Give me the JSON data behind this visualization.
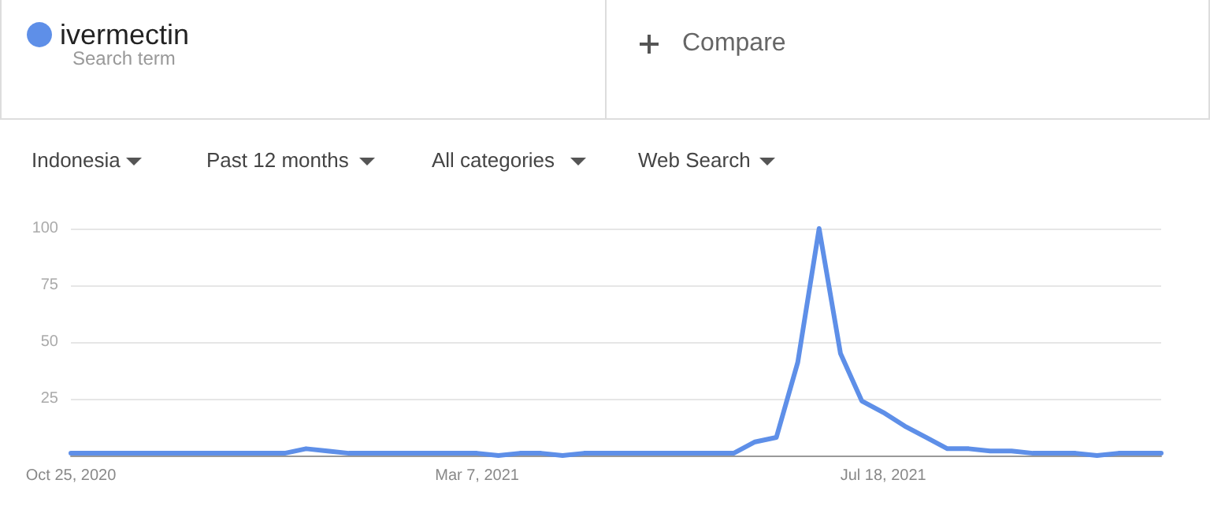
{
  "chart_data": {
    "type": "line",
    "categories": [
      "Oct 25, 2020",
      null,
      null,
      null,
      null,
      null,
      null,
      null,
      null,
      null,
      null,
      null,
      null,
      null,
      null,
      null,
      null,
      null,
      null,
      "Mar 7, 2021",
      null,
      null,
      null,
      null,
      null,
      null,
      null,
      null,
      null,
      null,
      null,
      null,
      null,
      null,
      null,
      null,
      null,
      null,
      "Jul 18, 2021",
      null,
      null,
      null,
      null,
      null,
      null,
      null,
      null,
      null,
      null,
      null,
      null,
      null
    ],
    "series": [
      {
        "name": "ivermectin",
        "color": "#5e8fe8",
        "values": [
          1,
          1,
          1,
          1,
          1,
          1,
          1,
          1,
          1,
          1,
          1,
          3,
          2,
          1,
          1,
          1,
          1,
          1,
          1,
          1,
          0,
          1,
          1,
          0,
          1,
          1,
          1,
          1,
          1,
          1,
          1,
          1,
          6,
          8,
          41,
          100,
          45,
          24,
          19,
          13,
          8,
          3,
          3,
          2,
          2,
          1,
          1,
          1,
          0,
          1,
          1,
          1
        ]
      }
    ],
    "ylim": [
      0,
      100
    ],
    "yticks": [
      {
        "value": 0,
        "label": null
      },
      25,
      50,
      75,
      100
    ],
    "grid": "y",
    "legend": "top left",
    "marker": "none",
    "line_style": "solid",
    "annotations": [
      "Search term",
      "Compare",
      "Indonesia",
      "Past 12 months",
      "All categories",
      "Web Search"
    ]
  }
}
